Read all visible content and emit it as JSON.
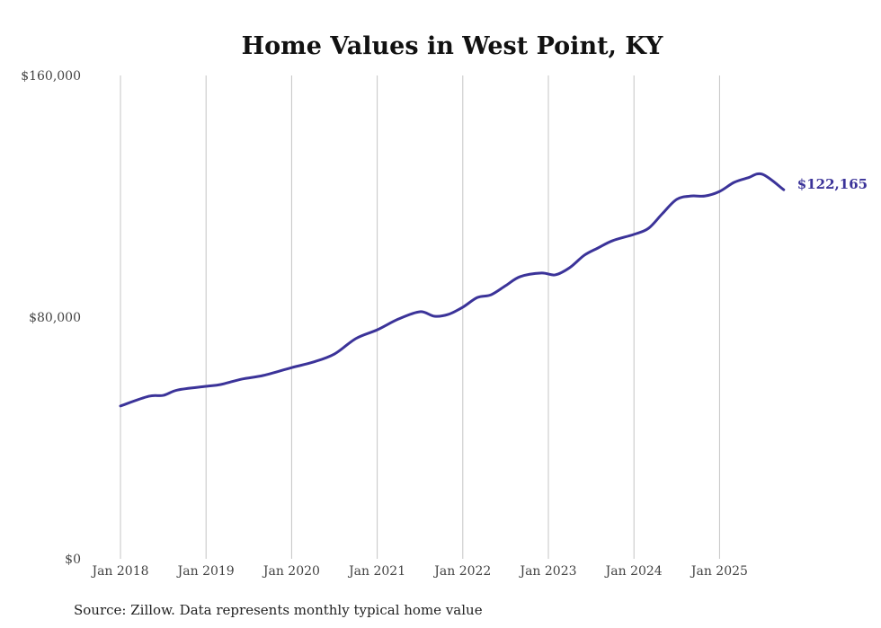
{
  "chart_data": {
    "type": "line",
    "title": "Home Values in West Point, KY",
    "xlabel": "",
    "ylabel": "",
    "source": "Source: Zillow. Data represents monthly typical home value",
    "ylim": [
      0,
      160000
    ],
    "xlim": [
      2018.0,
      2025.75
    ],
    "y_ticks": [
      {
        "value": 0,
        "label": "$0"
      },
      {
        "value": 80000,
        "label": "$80,000"
      },
      {
        "value": 160000,
        "label": "$160,000"
      }
    ],
    "x_ticks": [
      {
        "value": 2018,
        "label": "Jan 2018"
      },
      {
        "value": 2019,
        "label": "Jan 2019"
      },
      {
        "value": 2020,
        "label": "Jan 2020"
      },
      {
        "value": 2021,
        "label": "Jan 2021"
      },
      {
        "value": 2022,
        "label": "Jan 2022"
      },
      {
        "value": 2023,
        "label": "Jan 2023"
      },
      {
        "value": 2024,
        "label": "Jan 2024"
      },
      {
        "value": 2025,
        "label": "Jan 2025"
      }
    ],
    "grid": "vertical at x ticks",
    "series": [
      {
        "name": "Typical home value",
        "color": "#3b3399",
        "end_label": "$122,165",
        "x": [
          2018.0,
          2018.33,
          2018.5,
          2018.67,
          2019.0,
          2019.17,
          2019.42,
          2019.67,
          2020.0,
          2020.25,
          2020.5,
          2020.75,
          2021.0,
          2021.25,
          2021.5,
          2021.67,
          2021.83,
          2022.0,
          2022.17,
          2022.33,
          2022.5,
          2022.67,
          2022.92,
          2023.08,
          2023.25,
          2023.42,
          2023.58,
          2023.75,
          2024.0,
          2024.17,
          2024.33,
          2024.5,
          2024.67,
          2024.83,
          2025.0,
          2025.17,
          2025.33,
          2025.5,
          2025.75
        ],
        "y": [
          50600,
          53800,
          54100,
          55900,
          57100,
          57700,
          59500,
          60700,
          63300,
          65100,
          67800,
          72900,
          75800,
          79400,
          81800,
          80300,
          80900,
          83300,
          86500,
          87400,
          90400,
          93400,
          94600,
          94000,
          96400,
          100500,
          102900,
          105300,
          107400,
          109400,
          114200,
          119000,
          120100,
          120100,
          121600,
          124600,
          126100,
          127300,
          122165
        ]
      }
    ]
  }
}
